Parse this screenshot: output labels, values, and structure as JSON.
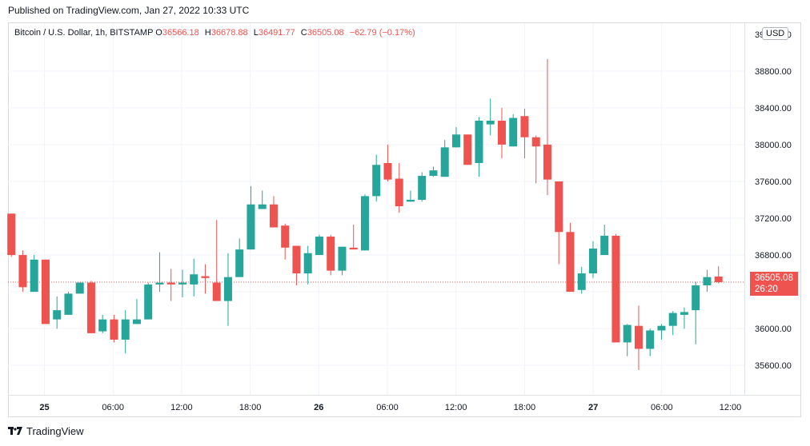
{
  "header": {
    "published": "Published on TradingView.com, Jan 27, 2022 10:33 UTC"
  },
  "legend": {
    "symbol": "Bitcoin / U.S. Dollar, 1h, BITSTAMP",
    "o_label": "O",
    "o_value": "36566.18",
    "h_label": "H",
    "h_value": "36678.88",
    "l_label": "L",
    "l_value": "36491.77",
    "c_label": "C",
    "c_value": "36505.08",
    "change": "−62.79 (−0.17%)"
  },
  "currency_label": "USD",
  "price_label": {
    "price": "36505.08",
    "countdown": "26:20"
  },
  "footer": {
    "brand": "TradingView"
  },
  "colors": {
    "up": "#26a69a",
    "down": "#ef5350",
    "grid": "#f0f3fa",
    "axis_text": "#131722"
  },
  "chart_data": {
    "type": "candlestick",
    "interval": "1h",
    "x_tick_labels": [
      "25",
      "06:00",
      "12:00",
      "18:00",
      "26",
      "06:00",
      "12:00",
      "18:00",
      "27",
      "06:00",
      "12:00"
    ],
    "x_tick_bold": [
      true,
      false,
      false,
      false,
      true,
      false,
      false,
      false,
      true,
      false,
      false
    ],
    "y_tick_labels": [
      "35600.00",
      "36000.00",
      "36400.00",
      "36800.00",
      "37200.00",
      "37600.00",
      "38000.00",
      "38400.00",
      "38800.00"
    ],
    "y_ticks": [
      35600,
      36000,
      36400,
      36800,
      37200,
      37600,
      38000,
      38400,
      38800
    ],
    "ylim": [
      35280,
      39320
    ],
    "last_price": 36505.08,
    "grid": true,
    "candles": [
      {
        "o": 37250,
        "h": 37250,
        "l": 36780,
        "c": 36800
      },
      {
        "o": 36800,
        "h": 36850,
        "l": 36400,
        "c": 36450
      },
      {
        "o": 36400,
        "h": 36800,
        "l": 36400,
        "c": 36750
      },
      {
        "o": 36750,
        "h": 36750,
        "l": 36050,
        "c": 36050
      },
      {
        "o": 36100,
        "h": 36350,
        "l": 36000,
        "c": 36200
      },
      {
        "o": 36150,
        "h": 36400,
        "l": 36150,
        "c": 36380
      },
      {
        "o": 36380,
        "h": 36500,
        "l": 36380,
        "c": 36500
      },
      {
        "o": 36500,
        "h": 36520,
        "l": 35950,
        "c": 35950
      },
      {
        "o": 35970,
        "h": 36150,
        "l": 35950,
        "c": 36100
      },
      {
        "o": 36100,
        "h": 36150,
        "l": 35850,
        "c": 35880
      },
      {
        "o": 35880,
        "h": 36200,
        "l": 35730,
        "c": 36100
      },
      {
        "o": 36050,
        "h": 36320,
        "l": 36050,
        "c": 36100
      },
      {
        "o": 36100,
        "h": 36500,
        "l": 36100,
        "c": 36480
      },
      {
        "o": 36480,
        "h": 36830,
        "l": 36400,
        "c": 36500
      },
      {
        "o": 36500,
        "h": 36650,
        "l": 36300,
        "c": 36480
      },
      {
        "o": 36480,
        "h": 36640,
        "l": 36340,
        "c": 36500
      },
      {
        "o": 36480,
        "h": 36760,
        "l": 36350,
        "c": 36590
      },
      {
        "o": 36570,
        "h": 36700,
        "l": 36380,
        "c": 36550
      },
      {
        "o": 36500,
        "h": 37180,
        "l": 36330,
        "c": 36300
      },
      {
        "o": 36300,
        "h": 36820,
        "l": 36030,
        "c": 36560
      },
      {
        "o": 36560,
        "h": 36980,
        "l": 36560,
        "c": 36860
      },
      {
        "o": 36860,
        "h": 37550,
        "l": 36860,
        "c": 37350
      },
      {
        "o": 37300,
        "h": 37500,
        "l": 37300,
        "c": 37350
      },
      {
        "o": 37350,
        "h": 37440,
        "l": 37100,
        "c": 37100
      },
      {
        "o": 37120,
        "h": 37140,
        "l": 36750,
        "c": 36880
      },
      {
        "o": 36900,
        "h": 36900,
        "l": 36470,
        "c": 36600
      },
      {
        "o": 36600,
        "h": 36900,
        "l": 36480,
        "c": 36820
      },
      {
        "o": 36800,
        "h": 37020,
        "l": 36800,
        "c": 37000
      },
      {
        "o": 37000,
        "h": 37020,
        "l": 36580,
        "c": 36630
      },
      {
        "o": 36630,
        "h": 36890,
        "l": 36580,
        "c": 36890
      },
      {
        "o": 36880,
        "h": 37130,
        "l": 36880,
        "c": 36860
      },
      {
        "o": 36850,
        "h": 37460,
        "l": 36850,
        "c": 37440
      },
      {
        "o": 37440,
        "h": 37890,
        "l": 37380,
        "c": 37780
      },
      {
        "o": 37800,
        "h": 38000,
        "l": 37600,
        "c": 37620
      },
      {
        "o": 37630,
        "h": 37800,
        "l": 37260,
        "c": 37330
      },
      {
        "o": 37380,
        "h": 37500,
        "l": 37380,
        "c": 37400
      },
      {
        "o": 37400,
        "h": 37700,
        "l": 37380,
        "c": 37660
      },
      {
        "o": 37660,
        "h": 37760,
        "l": 37650,
        "c": 37720
      },
      {
        "o": 37650,
        "h": 38050,
        "l": 37650,
        "c": 37970
      },
      {
        "o": 37970,
        "h": 38190,
        "l": 37970,
        "c": 38110
      },
      {
        "o": 38110,
        "h": 38110,
        "l": 37780,
        "c": 37780
      },
      {
        "o": 37800,
        "h": 38300,
        "l": 37650,
        "c": 38260
      },
      {
        "o": 38220,
        "h": 38500,
        "l": 38100,
        "c": 38260
      },
      {
        "o": 38260,
        "h": 38400,
        "l": 37850,
        "c": 38000
      },
      {
        "o": 37980,
        "h": 38330,
        "l": 37980,
        "c": 38290
      },
      {
        "o": 38310,
        "h": 38390,
        "l": 37850,
        "c": 38080
      },
      {
        "o": 38080,
        "h": 38100,
        "l": 37580,
        "c": 37980
      },
      {
        "o": 38000,
        "h": 38930,
        "l": 37450,
        "c": 37620
      },
      {
        "o": 37600,
        "h": 37600,
        "l": 36700,
        "c": 37050
      },
      {
        "o": 37050,
        "h": 37150,
        "l": 36400,
        "c": 36400
      },
      {
        "o": 36420,
        "h": 36670,
        "l": 36380,
        "c": 36600
      },
      {
        "o": 36600,
        "h": 36950,
        "l": 36550,
        "c": 36870
      },
      {
        "o": 36800,
        "h": 37130,
        "l": 36800,
        "c": 37010
      },
      {
        "o": 37010,
        "h": 37030,
        "l": 35850,
        "c": 35850
      },
      {
        "o": 35850,
        "h": 36050,
        "l": 35700,
        "c": 36040
      },
      {
        "o": 36030,
        "h": 36250,
        "l": 35550,
        "c": 35780
      },
      {
        "o": 35780,
        "h": 36000,
        "l": 35700,
        "c": 35980
      },
      {
        "o": 35980,
        "h": 36050,
        "l": 35880,
        "c": 36030
      },
      {
        "o": 36030,
        "h": 36190,
        "l": 35930,
        "c": 36170
      },
      {
        "o": 36150,
        "h": 36230,
        "l": 36000,
        "c": 36180
      },
      {
        "o": 36200,
        "h": 36510,
        "l": 35830,
        "c": 36470
      },
      {
        "o": 36470,
        "h": 36640,
        "l": 36400,
        "c": 36560
      },
      {
        "o": 36566.18,
        "h": 36678.88,
        "l": 36491.77,
        "c": 36505.08
      }
    ]
  }
}
